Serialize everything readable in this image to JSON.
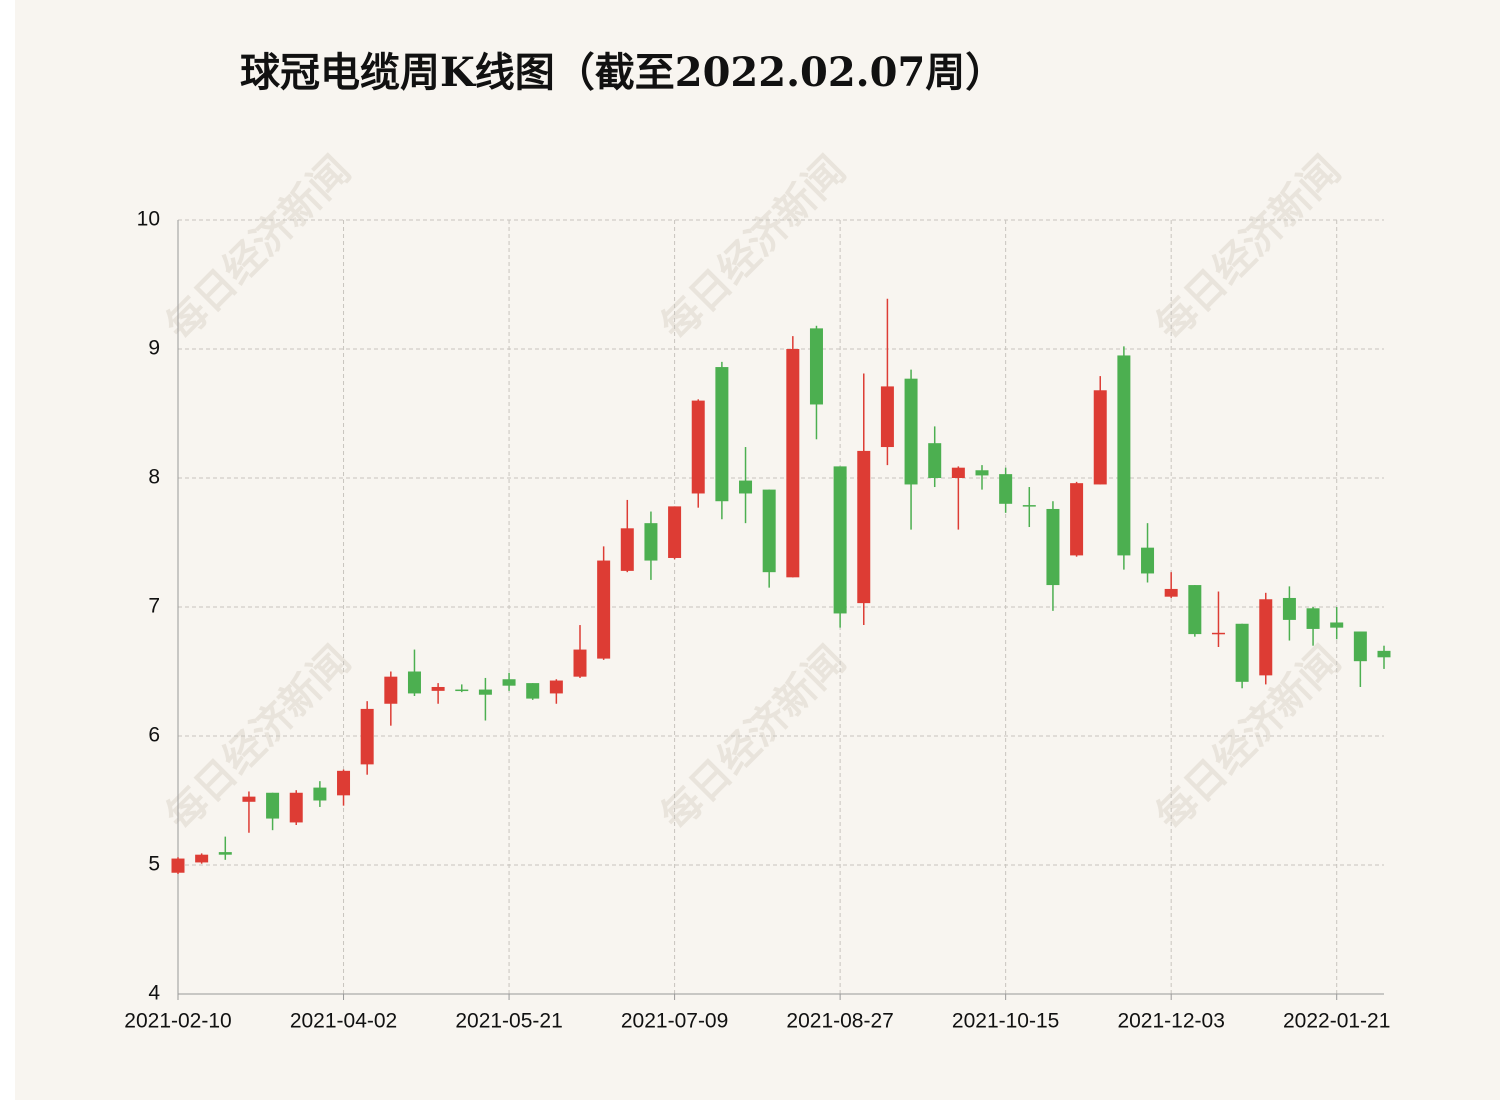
{
  "chart_data": {
    "type": "candlestick",
    "title": "球冠电缆周K线图（截至2022.02.07周）",
    "watermark": "每日经济新闻",
    "categories": [
      "2021-02-10",
      null,
      null,
      null,
      null,
      null,
      null,
      "2021-04-02",
      null,
      null,
      null,
      null,
      null,
      null,
      "2021-05-21",
      null,
      null,
      null,
      null,
      null,
      null,
      "2021-07-09",
      null,
      null,
      null,
      null,
      null,
      null,
      "2021-08-27",
      null,
      null,
      null,
      null,
      null,
      null,
      "2021-10-15",
      null,
      null,
      null,
      null,
      null,
      null,
      "2021-12-03",
      null,
      null,
      null,
      null,
      null,
      null,
      "2022-01-21",
      null,
      null
    ],
    "open": [
      4.94,
      5.02,
      5.1,
      5.49,
      5.56,
      5.33,
      5.6,
      5.54,
      5.78,
      6.25,
      6.5,
      6.35,
      6.36,
      6.36,
      6.44,
      6.41,
      6.33,
      6.46,
      6.6,
      7.28,
      7.65,
      7.38,
      7.88,
      8.86,
      7.98,
      7.91,
      7.23,
      9.16,
      8.09,
      7.03,
      8.24,
      8.77,
      8.27,
      8.0,
      8.06,
      8.03,
      7.79,
      7.76,
      7.4,
      7.95,
      8.95,
      7.46,
      7.08,
      7.17,
      6.79,
      6.87,
      6.47,
      7.07,
      6.99,
      6.88,
      6.81,
      6.66
    ],
    "high": [
      5.06,
      5.09,
      5.22,
      5.57,
      5.56,
      5.58,
      5.65,
      5.74,
      6.27,
      6.5,
      6.67,
      6.41,
      6.4,
      6.45,
      6.49,
      6.41,
      6.44,
      6.86,
      7.47,
      7.83,
      7.74,
      7.78,
      8.61,
      8.9,
      8.24,
      7.91,
      9.1,
      9.18,
      8.09,
      8.81,
      9.39,
      8.84,
      8.4,
      8.09,
      8.1,
      8.08,
      7.93,
      7.82,
      7.97,
      8.79,
      9.02,
      7.65,
      7.27,
      7.17,
      7.12,
      6.87,
      7.11,
      7.16,
      7.0,
      7.0,
      6.81,
      6.7
    ],
    "low": [
      4.93,
      5.01,
      5.04,
      5.25,
      5.27,
      5.31,
      5.45,
      5.46,
      5.7,
      6.08,
      6.31,
      6.25,
      6.34,
      6.12,
      6.35,
      6.28,
      6.25,
      6.45,
      6.59,
      7.27,
      7.21,
      7.37,
      7.77,
      7.68,
      7.65,
      7.15,
      7.23,
      8.3,
      6.84,
      6.86,
      8.1,
      7.6,
      7.93,
      7.6,
      7.91,
      7.73,
      7.62,
      6.97,
      7.39,
      7.95,
      7.29,
      7.19,
      7.07,
      6.77,
      6.69,
      6.37,
      6.4,
      6.74,
      6.7,
      6.75,
      6.38,
      6.52
    ],
    "close": [
      5.05,
      5.08,
      5.08,
      5.53,
      5.36,
      5.56,
      5.5,
      5.73,
      6.21,
      6.46,
      6.33,
      6.38,
      6.35,
      6.32,
      6.39,
      6.29,
      6.43,
      6.67,
      7.36,
      7.61,
      7.36,
      7.78,
      8.6,
      7.82,
      7.88,
      7.27,
      9.0,
      8.57,
      6.95,
      8.21,
      8.71,
      7.95,
      8.0,
      8.08,
      8.02,
      7.8,
      7.78,
      7.17,
      7.96,
      8.68,
      7.4,
      7.26,
      7.14,
      6.79,
      6.8,
      6.42,
      7.06,
      6.9,
      6.83,
      6.84,
      6.58,
      6.61
    ],
    "up_color": "#dd3c34",
    "down_color": "#4caf50",
    "ylim": [
      4,
      10
    ],
    "yticks": [
      4,
      5,
      6,
      7,
      8,
      9,
      10
    ],
    "grid": true
  }
}
